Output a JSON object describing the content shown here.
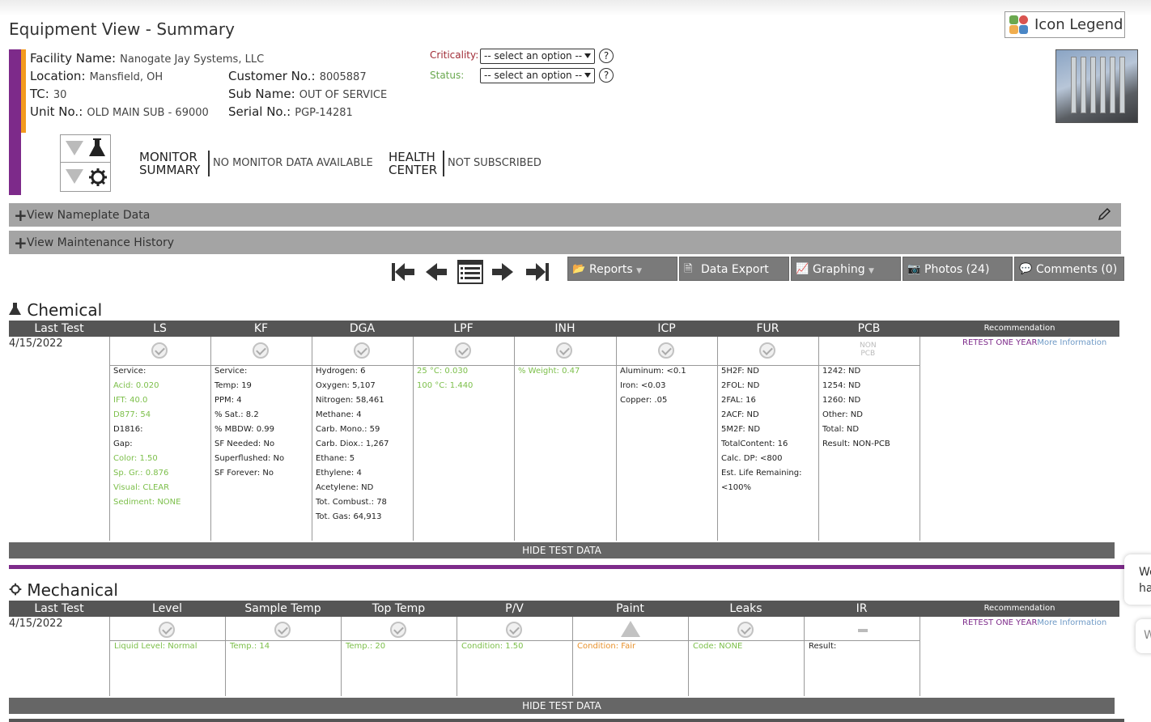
{
  "page_title": "Equipment View - Summary",
  "icon_legend": "Icon Legend",
  "facility": {
    "name_label": "Facility Name:",
    "name": "Nanogate Jay Systems, LLC",
    "location_label": "Location:",
    "location": "Mansfield, OH",
    "tc_label": "TC:",
    "tc": "30",
    "unit_label": "Unit No.:",
    "unit": "OLD MAIN SUB - 69000",
    "customer_label": "Customer No.:",
    "customer": "8005887",
    "subname_label": "Sub Name:",
    "subname": "OUT OF SERVICE",
    "serial_label": "Serial No.:",
    "serial": "PGP-14281"
  },
  "criticality": {
    "label": "Criticality:",
    "value": "-- select an option --",
    "color": "#a02b35"
  },
  "status": {
    "label": "Status:",
    "value": "-- select an option --",
    "color": "#6aa84f"
  },
  "help": "?",
  "monitor": {
    "label1": "MONITOR",
    "label2": "SUMMARY",
    "value": "NO MONITOR DATA AVAILABLE"
  },
  "health": {
    "label1": "HEALTH",
    "label2": "CENTER",
    "value": "NOT SUBSCRIBED"
  },
  "nameplate": "View Nameplate Data",
  "maintenance": "View Maintenance History",
  "toolbar": {
    "reports": "Reports",
    "data_export": "Data Export",
    "graphing": "Graphing",
    "photos": "Photos (24)",
    "comments": "Comments (0)"
  },
  "chemical": {
    "title": "Chemical",
    "headers": [
      "Last Test",
      "LS",
      "KF",
      "DGA",
      "LPF",
      "INH",
      "ICP",
      "FUR",
      "PCB",
      "Recommendation"
    ],
    "date": "4/15/2022",
    "pcb_badge1": "NON",
    "pcb_badge2": "PCB",
    "rec1": "RETEST ONE YEAR",
    "rec2": "More Information",
    "ls": [
      "Service:",
      "Acid: 0.020",
      "IFT: 40.0",
      "D877: 54",
      "D1816:",
      "Gap:",
      "Color: 1.50",
      "Sp. Gr.: 0.876",
      "Visual: CLEAR",
      "Sediment: NONE"
    ],
    "kf": [
      "Service:",
      "Temp: 19",
      "PPM: 4",
      "% Sat.: 8.2",
      "% MBDW: 0.99",
      "SF Needed: No",
      "Superflushed: No",
      "SF Forever: No"
    ],
    "dga": [
      "Hydrogen: 6",
      "Oxygen: 5,107",
      "Nitrogen: 58,461",
      "Methane: 4",
      "Carb. Mono.: 59",
      "Carb. Diox.: 1,267",
      "Ethane: 5",
      "Ethylene: 4",
      "Acetylene: ND",
      "Tot. Combust.: 78",
      "Tot. Gas: 64,913"
    ],
    "lpf": [
      "25 °C: 0.030",
      "100 °C: 1.440"
    ],
    "inh": [
      "% Weight: 0.47"
    ],
    "icp": [
      "Aluminum: <0.1",
      "Iron: <0.03",
      "Copper: .05"
    ],
    "fur": [
      "5H2F: ND",
      "2FOL: ND",
      "2FAL: 16",
      "2ACF: ND",
      "5M2F: ND",
      "TotalContent: 16",
      "Calc. DP: <800",
      "Est. Life Remaining:",
      "<100%"
    ],
    "pcb": [
      "1242: ND",
      "1254: ND",
      "1260: ND",
      "Other: ND",
      "Total: ND",
      "Result: NON-PCB"
    ],
    "hide": "HIDE TEST DATA"
  },
  "mechanical": {
    "title": "Mechanical",
    "headers": [
      "Last Test",
      "Level",
      "Sample Temp",
      "Top Temp",
      "P/V",
      "Paint",
      "Leaks",
      "IR",
      "Recommendation"
    ],
    "date": "4/15/2022",
    "rec1": "RETEST ONE YEAR",
    "rec2": "More Information",
    "data": [
      "Liquid Level: Normal",
      "Temp.: 14",
      "Temp.: 20",
      "Condition: 1.50",
      "Condition: Fair",
      "Code: NONE",
      "Result:"
    ],
    "hide": "HIDE TEST DATA"
  },
  "side_bubble": [
    "We",
    "ha"
  ],
  "side_bubble2": "W"
}
